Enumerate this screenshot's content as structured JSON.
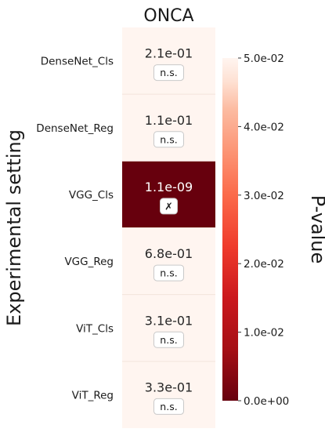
{
  "chart_data": {
    "type": "heatmap",
    "title": "ONCA",
    "ylabel": "Experimental setting",
    "colorbar_label": "P-value",
    "colormap": "Reds_r",
    "vmin": 0.0,
    "vmax": 0.05,
    "colorbar_ticks": [
      "0.0e+00",
      "1.0e-02",
      "2.0e-02",
      "3.0e-02",
      "4.0e-02",
      "5.0e-02"
    ],
    "colorbar_tick_values": [
      0.0,
      0.01,
      0.02,
      0.03,
      0.04,
      0.05
    ],
    "rows": [
      {
        "label": "DenseNet_Cls",
        "value": 0.21,
        "value_label": "2.1e-01",
        "badge": "n.s."
      },
      {
        "label": "DenseNet_Reg",
        "value": 0.11,
        "value_label": "1.1e-01",
        "badge": "n.s."
      },
      {
        "label": "VGG_Cls",
        "value": 1.1e-09,
        "value_label": "1.1e-09",
        "badge": "✗"
      },
      {
        "label": "VGG_Reg",
        "value": 0.68,
        "value_label": "6.8e-01",
        "badge": "n.s."
      },
      {
        "label": "ViT_Cls",
        "value": 0.31,
        "value_label": "3.1e-01",
        "badge": "n.s."
      },
      {
        "label": "ViT_Reg",
        "value": 0.33,
        "value_label": "3.3e-01",
        "badge": "n.s."
      }
    ],
    "colors": {
      "low": "#67000d",
      "high": "#fff5f0",
      "text_on_light": "#262626",
      "text_on_dark": "#ffffff"
    }
  }
}
